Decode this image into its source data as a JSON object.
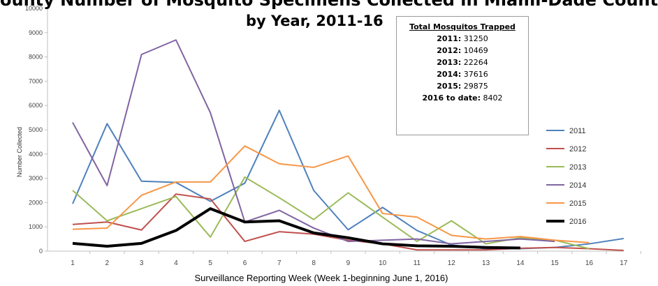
{
  "title_line1": "ounty Number of Mosquito Specimens Collected in Miami-Dade Count",
  "title_line2": "by Year, 2011-16",
  "totals": {
    "heading": "Total Mosquitos Trapped",
    "rows": [
      {
        "label": "2011:",
        "value": "31250"
      },
      {
        "label": "2012:",
        "value": "10469"
      },
      {
        "label": "2013:",
        "value": "22264"
      },
      {
        "label": "2014:",
        "value": "37616"
      },
      {
        "label": "2015:",
        "value": "29875"
      },
      {
        "label": "2016 to date:",
        "value": "8402"
      }
    ]
  },
  "chart_data": {
    "type": "line",
    "title": "ounty Number of Mosquito Specimens Collected in Miami-Dade Count by Year, 2011-16",
    "xlabel": "Surveillance Reporting Week (Week 1-beginning June 1, 2016)",
    "ylabel": "Number Collected",
    "x": [
      1,
      2,
      3,
      4,
      5,
      6,
      7,
      8,
      9,
      10,
      11,
      12,
      13,
      14,
      15,
      16,
      17
    ],
    "ylim": [
      0,
      10000
    ],
    "yticks": [
      0,
      1000,
      2000,
      3000,
      4000,
      5000,
      6000,
      7000,
      8000,
      9000,
      10000
    ],
    "grid": false,
    "legend_position": "right",
    "series": [
      {
        "name": "2011",
        "color": "#4f81bd",
        "width": 2,
        "values": [
          1950,
          5250,
          2880,
          2830,
          2050,
          2800,
          5800,
          2500,
          880,
          1800,
          850,
          250,
          100,
          100,
          150,
          300,
          520
        ]
      },
      {
        "name": "2012",
        "color": "#c0504d",
        "width": 2,
        "values": [
          1100,
          1200,
          870,
          2350,
          2150,
          400,
          800,
          700,
          450,
          300,
          50,
          50,
          50,
          120,
          150,
          100,
          30
        ]
      },
      {
        "name": "2013",
        "color": "#9bbb59",
        "width": 2,
        "values": [
          2500,
          1250,
          1750,
          2250,
          580,
          3050,
          2200,
          1300,
          2400,
          1400,
          400,
          1250,
          300,
          550,
          450,
          100,
          null
        ]
      },
      {
        "name": "2014",
        "color": "#8064a2",
        "width": 2,
        "values": [
          5300,
          2700,
          8100,
          8700,
          5700,
          1200,
          1680,
          950,
          400,
          450,
          500,
          300,
          400,
          500,
          400,
          null,
          null
        ]
      },
      {
        "name": "2015",
        "color": "#f79646",
        "width": 2,
        "values": [
          900,
          950,
          2300,
          2850,
          2850,
          4330,
          3600,
          3450,
          3920,
          1550,
          1400,
          650,
          500,
          600,
          450,
          350,
          null
        ]
      },
      {
        "name": "2016",
        "color": "#000000",
        "width": 4,
        "values": [
          320,
          200,
          320,
          850,
          1750,
          1200,
          1250,
          750,
          550,
          300,
          220,
          200,
          150,
          130,
          null,
          null,
          null
        ]
      }
    ]
  }
}
